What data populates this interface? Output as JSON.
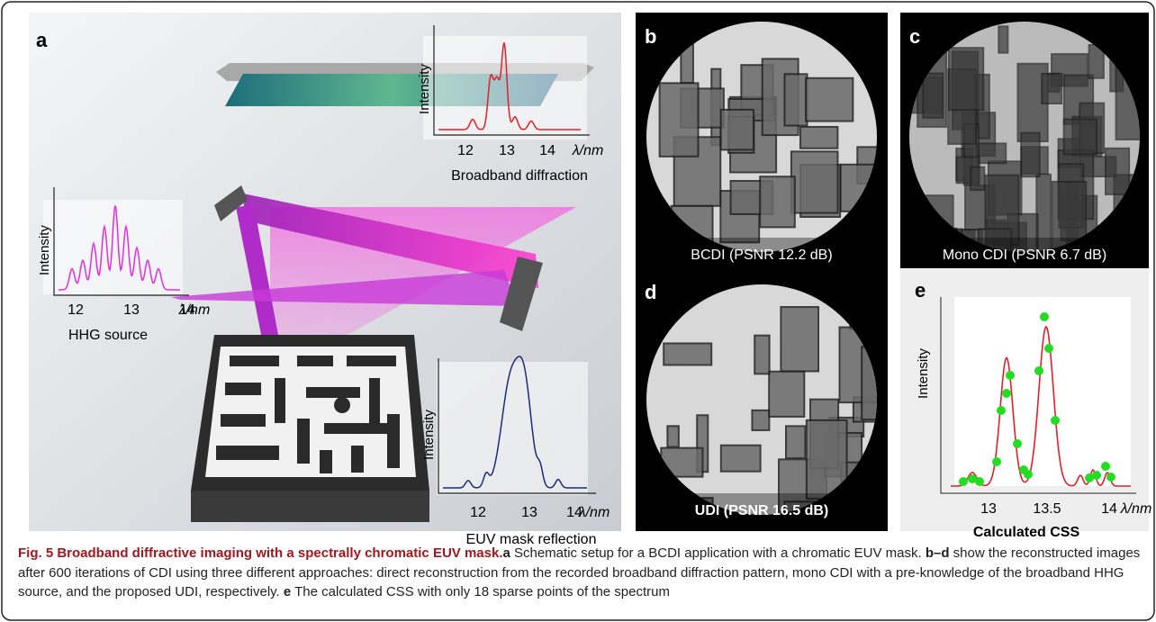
{
  "panels": {
    "a": {
      "label": "a",
      "insets": [
        {
          "y_label": "Intensity",
          "ticks": [
            12,
            13,
            14
          ],
          "x_label": "λ/nm",
          "caption": "Broadband diffraction"
        },
        {
          "y_label": "Intensity",
          "ticks": [
            12,
            13,
            14
          ],
          "x_label": "λ/nm",
          "caption": "HHG source"
        },
        {
          "y_label": "Intensity",
          "ticks": [
            12,
            13,
            14
          ],
          "x_label": "λ/nm",
          "caption": "EUV mask reflection"
        }
      ]
    },
    "b": {
      "label": "b",
      "caption": "BCDI (PSNR 12.2 dB)"
    },
    "c": {
      "label": "c",
      "caption": "Mono CDI (PSNR 6.7 dB)"
    },
    "d": {
      "label": "d",
      "caption": "UDI (PSNR 16.5 dB)"
    },
    "e": {
      "label": "e",
      "y_label": "Intensity",
      "ticks": [
        13,
        13.5,
        14
      ],
      "x_label": "λ/nm",
      "caption": "Calculated CSS"
    }
  },
  "caption": {
    "figure": "Fig. 5",
    "title": "Broadband diffractive imaging with a spectrally chromatic EUV mask.",
    "parts": [
      "a",
      " Schematic setup for a BCDI application with a chromatic EUV mask. ",
      "b–d",
      " show the reconstructed images after 600 iterations of CDI using three different approaches: direct reconstruction from the recorded broadband diffraction pattern, mono CDI with a pre-knowledge of the broadband HHG source, and the proposed UDI, respectively. ",
      "e",
      " The calculated CSS with only 18 sparse points of the spectrum"
    ]
  }
}
